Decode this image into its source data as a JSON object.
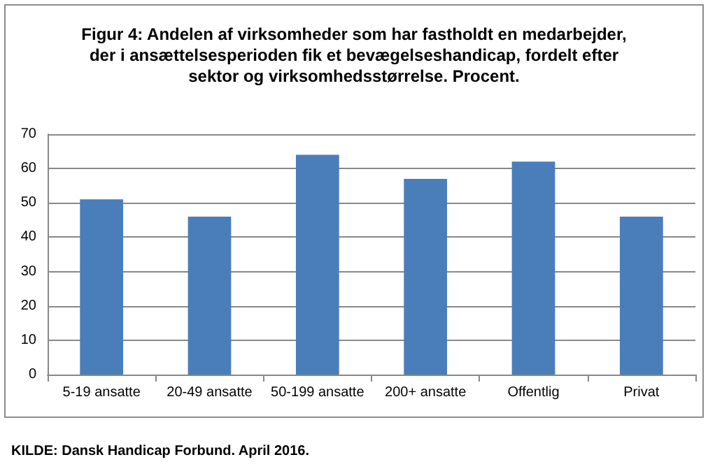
{
  "chart_data": {
    "type": "bar",
    "title": "Figur 4: Andelen af virksomheder som har fastholdt en medarbejder,\nder i ansættelsesperioden fik et bevægelseshandicap, fordelt efter\nsektor og virksomhedsstørrelse. Procent.",
    "categories": [
      "5-19 ansatte",
      "20-49 ansatte",
      "50-199 ansatte",
      "200+ ansatte",
      "Offentlig",
      "Privat"
    ],
    "values": [
      51,
      46,
      64,
      57,
      62,
      46
    ],
    "color": "#4a7ebb",
    "ylim": [
      0,
      70
    ],
    "yticks": [
      0,
      10,
      20,
      30,
      40,
      50,
      60,
      70
    ],
    "grid": "y",
    "annotations": [
      "KILDE: Dansk Handicap Forbund. April 2016."
    ]
  }
}
